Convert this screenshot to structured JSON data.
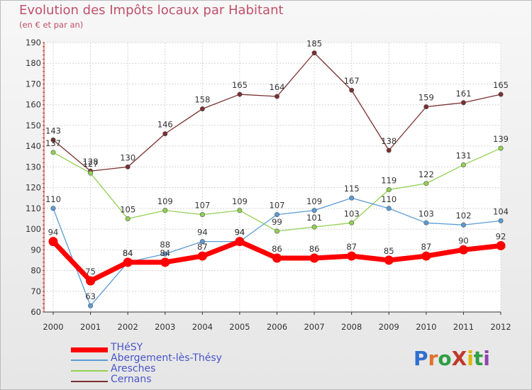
{
  "title": "Evolution des Impôts locaux par Habitant",
  "subtitle": "(en € et par an)",
  "logo": "ProXiti",
  "chart_data": {
    "type": "line",
    "x": [
      "2000",
      "2001",
      "2002",
      "2003",
      "2004",
      "2005",
      "2006",
      "2007",
      "2008",
      "2009",
      "2010",
      "2011",
      "2012"
    ],
    "ylim": [
      60,
      190
    ],
    "yticks": [
      60,
      70,
      80,
      90,
      100,
      110,
      120,
      130,
      140,
      150,
      160,
      170,
      180,
      190
    ],
    "grid": true,
    "legend_position": "bottom-left",
    "series": [
      {
        "name": "THéSY",
        "color": "#ff0000",
        "values": [
          94,
          75,
          84,
          84,
          87,
          94,
          86,
          86,
          87,
          85,
          87,
          90,
          92
        ]
      },
      {
        "name": "Abergement-lès-Thésy",
        "color": "#5b9bd5",
        "values": [
          110,
          63,
          84,
          88,
          94,
          94,
          107,
          109,
          115,
          110,
          103,
          102,
          104
        ]
      },
      {
        "name": "Aresches",
        "color": "#92d050",
        "values": [
          137,
          127,
          105,
          109,
          107,
          109,
          99,
          101,
          103,
          119,
          122,
          131,
          139
        ]
      },
      {
        "name": "Cernans",
        "color": "#7b2f2f",
        "values": [
          143,
          128,
          130,
          146,
          158,
          165,
          164,
          185,
          167,
          138,
          159,
          161,
          165
        ]
      }
    ]
  }
}
